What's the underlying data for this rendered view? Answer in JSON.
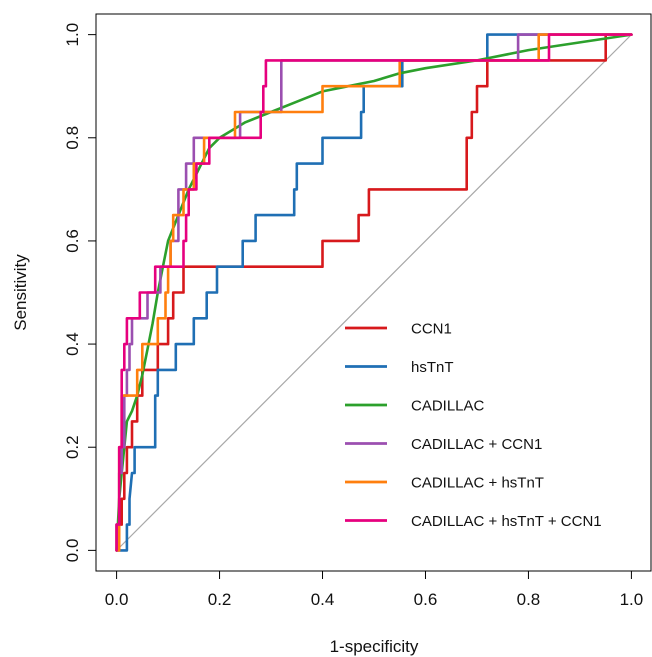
{
  "chart_data": {
    "type": "line",
    "title": "",
    "xlabel": "1-specificity",
    "ylabel": "Sensitivity",
    "xlim": [
      -0.04,
      1.04
    ],
    "ylim": [
      -0.04,
      1.04
    ],
    "x_ticks": [
      0.0,
      0.2,
      0.4,
      0.6,
      0.8,
      1.0
    ],
    "y_ticks": [
      0.0,
      0.2,
      0.4,
      0.6,
      0.8,
      1.0
    ],
    "x_tick_labels": [
      "0.0",
      "0.2",
      "0.4",
      "0.6",
      "0.8",
      "1.0"
    ],
    "y_tick_labels": [
      "0.0",
      "0.2",
      "0.4",
      "0.6",
      "0.8",
      "1.0"
    ],
    "grid": false,
    "legend_position": "bottom-right",
    "diagonal_reference_line": true,
    "series": [
      {
        "name": "CCN1",
        "color": "#d7191c",
        "points": [
          [
            0.0,
            0.0
          ],
          [
            0.0,
            0.05
          ],
          [
            0.01,
            0.05
          ],
          [
            0.01,
            0.1
          ],
          [
            0.015,
            0.1
          ],
          [
            0.015,
            0.15
          ],
          [
            0.02,
            0.15
          ],
          [
            0.02,
            0.2
          ],
          [
            0.03,
            0.2
          ],
          [
            0.03,
            0.25
          ],
          [
            0.04,
            0.25
          ],
          [
            0.04,
            0.3
          ],
          [
            0.05,
            0.3
          ],
          [
            0.05,
            0.35
          ],
          [
            0.08,
            0.35
          ],
          [
            0.08,
            0.4
          ],
          [
            0.1,
            0.4
          ],
          [
            0.1,
            0.45
          ],
          [
            0.11,
            0.45
          ],
          [
            0.11,
            0.5
          ],
          [
            0.13,
            0.5
          ],
          [
            0.13,
            0.55
          ],
          [
            0.4,
            0.55
          ],
          [
            0.4,
            0.6
          ],
          [
            0.47,
            0.6
          ],
          [
            0.47,
            0.65
          ],
          [
            0.49,
            0.65
          ],
          [
            0.49,
            0.7
          ],
          [
            0.68,
            0.7
          ],
          [
            0.68,
            0.8
          ],
          [
            0.69,
            0.8
          ],
          [
            0.69,
            0.85
          ],
          [
            0.7,
            0.85
          ],
          [
            0.7,
            0.9
          ],
          [
            0.72,
            0.9
          ],
          [
            0.72,
            0.95
          ],
          [
            0.95,
            0.95
          ],
          [
            0.95,
            1.0
          ],
          [
            1.0,
            1.0
          ]
        ]
      },
      {
        "name": "hsTnT",
        "color": "#1f6fb4",
        "points": [
          [
            0.0,
            0.0
          ],
          [
            0.02,
            0.0
          ],
          [
            0.02,
            0.05
          ],
          [
            0.025,
            0.05
          ],
          [
            0.025,
            0.1
          ],
          [
            0.03,
            0.15
          ],
          [
            0.035,
            0.15
          ],
          [
            0.035,
            0.2
          ],
          [
            0.075,
            0.2
          ],
          [
            0.075,
            0.25
          ],
          [
            0.075,
            0.3
          ],
          [
            0.08,
            0.3
          ],
          [
            0.08,
            0.35
          ],
          [
            0.115,
            0.35
          ],
          [
            0.115,
            0.4
          ],
          [
            0.15,
            0.4
          ],
          [
            0.15,
            0.45
          ],
          [
            0.175,
            0.45
          ],
          [
            0.175,
            0.5
          ],
          [
            0.195,
            0.5
          ],
          [
            0.195,
            0.55
          ],
          [
            0.245,
            0.55
          ],
          [
            0.245,
            0.6
          ],
          [
            0.27,
            0.6
          ],
          [
            0.27,
            0.65
          ],
          [
            0.345,
            0.65
          ],
          [
            0.345,
            0.7
          ],
          [
            0.35,
            0.7
          ],
          [
            0.35,
            0.75
          ],
          [
            0.4,
            0.75
          ],
          [
            0.4,
            0.8
          ],
          [
            0.475,
            0.8
          ],
          [
            0.475,
            0.85
          ],
          [
            0.48,
            0.85
          ],
          [
            0.48,
            0.9
          ],
          [
            0.555,
            0.9
          ],
          [
            0.555,
            0.95
          ],
          [
            0.72,
            0.95
          ],
          [
            0.72,
            1.0
          ],
          [
            1.0,
            1.0
          ]
        ]
      },
      {
        "name": "CADILLAC",
        "color": "#2ca02c",
        "points": [
          [
            0.0,
            0.0
          ],
          [
            0.005,
            0.1
          ],
          [
            0.01,
            0.15
          ],
          [
            0.015,
            0.2
          ],
          [
            0.02,
            0.25
          ],
          [
            0.03,
            0.27
          ],
          [
            0.04,
            0.3
          ],
          [
            0.05,
            0.34
          ],
          [
            0.06,
            0.39
          ],
          [
            0.07,
            0.44
          ],
          [
            0.08,
            0.5
          ],
          [
            0.09,
            0.55
          ],
          [
            0.1,
            0.6
          ],
          [
            0.12,
            0.65
          ],
          [
            0.14,
            0.7
          ],
          [
            0.16,
            0.74
          ],
          [
            0.18,
            0.78
          ],
          [
            0.2,
            0.8
          ],
          [
            0.25,
            0.83
          ],
          [
            0.3,
            0.85
          ],
          [
            0.35,
            0.87
          ],
          [
            0.4,
            0.89
          ],
          [
            0.45,
            0.9
          ],
          [
            0.5,
            0.91
          ],
          [
            0.55,
            0.925
          ],
          [
            0.6,
            0.935
          ],
          [
            0.7,
            0.95
          ],
          [
            0.8,
            0.97
          ],
          [
            0.9,
            0.985
          ],
          [
            1.0,
            1.0
          ]
        ]
      },
      {
        "name": "CADILLAC + CCN1",
        "color": "#9b4fb0",
        "points": [
          [
            0.0,
            0.0
          ],
          [
            0.0,
            0.05
          ],
          [
            0.005,
            0.05
          ],
          [
            0.005,
            0.15
          ],
          [
            0.01,
            0.15
          ],
          [
            0.01,
            0.2
          ],
          [
            0.015,
            0.2
          ],
          [
            0.015,
            0.3
          ],
          [
            0.02,
            0.3
          ],
          [
            0.02,
            0.35
          ],
          [
            0.025,
            0.35
          ],
          [
            0.025,
            0.4
          ],
          [
            0.03,
            0.4
          ],
          [
            0.03,
            0.45
          ],
          [
            0.06,
            0.45
          ],
          [
            0.06,
            0.5
          ],
          [
            0.085,
            0.5
          ],
          [
            0.085,
            0.55
          ],
          [
            0.105,
            0.55
          ],
          [
            0.105,
            0.6
          ],
          [
            0.12,
            0.6
          ],
          [
            0.12,
            0.7
          ],
          [
            0.135,
            0.7
          ],
          [
            0.135,
            0.75
          ],
          [
            0.15,
            0.75
          ],
          [
            0.15,
            0.8
          ],
          [
            0.24,
            0.8
          ],
          [
            0.24,
            0.85
          ],
          [
            0.32,
            0.85
          ],
          [
            0.32,
            0.95
          ],
          [
            0.78,
            0.95
          ],
          [
            0.78,
            1.0
          ],
          [
            1.0,
            1.0
          ]
        ]
      },
      {
        "name": "CADILLAC + hsTnT",
        "color": "#ff7f0e",
        "points": [
          [
            0.0,
            0.0
          ],
          [
            0.005,
            0.0
          ],
          [
            0.005,
            0.2
          ],
          [
            0.01,
            0.2
          ],
          [
            0.01,
            0.3
          ],
          [
            0.04,
            0.3
          ],
          [
            0.04,
            0.35
          ],
          [
            0.05,
            0.35
          ],
          [
            0.05,
            0.4
          ],
          [
            0.08,
            0.4
          ],
          [
            0.08,
            0.45
          ],
          [
            0.095,
            0.45
          ],
          [
            0.095,
            0.5
          ],
          [
            0.1,
            0.5
          ],
          [
            0.1,
            0.55
          ],
          [
            0.105,
            0.55
          ],
          [
            0.105,
            0.6
          ],
          [
            0.11,
            0.6
          ],
          [
            0.11,
            0.65
          ],
          [
            0.13,
            0.65
          ],
          [
            0.13,
            0.7
          ],
          [
            0.15,
            0.7
          ],
          [
            0.15,
            0.75
          ],
          [
            0.17,
            0.75
          ],
          [
            0.17,
            0.8
          ],
          [
            0.23,
            0.8
          ],
          [
            0.23,
            0.85
          ],
          [
            0.4,
            0.85
          ],
          [
            0.4,
            0.9
          ],
          [
            0.55,
            0.9
          ],
          [
            0.55,
            0.95
          ],
          [
            0.82,
            0.95
          ],
          [
            0.82,
            1.0
          ],
          [
            1.0,
            1.0
          ]
        ]
      },
      {
        "name": "CADILLAC + hsTnT + CCN1",
        "color": "#e6007e",
        "points": [
          [
            0.0,
            0.0
          ],
          [
            0.0,
            0.05
          ],
          [
            0.005,
            0.05
          ],
          [
            0.005,
            0.2
          ],
          [
            0.01,
            0.2
          ],
          [
            0.01,
            0.35
          ],
          [
            0.015,
            0.35
          ],
          [
            0.015,
            0.4
          ],
          [
            0.02,
            0.4
          ],
          [
            0.02,
            0.45
          ],
          [
            0.045,
            0.45
          ],
          [
            0.045,
            0.5
          ],
          [
            0.075,
            0.5
          ],
          [
            0.075,
            0.55
          ],
          [
            0.13,
            0.55
          ],
          [
            0.13,
            0.6
          ],
          [
            0.135,
            0.6
          ],
          [
            0.135,
            0.65
          ],
          [
            0.14,
            0.65
          ],
          [
            0.14,
            0.7
          ],
          [
            0.155,
            0.7
          ],
          [
            0.155,
            0.75
          ],
          [
            0.18,
            0.75
          ],
          [
            0.18,
            0.8
          ],
          [
            0.28,
            0.8
          ],
          [
            0.28,
            0.85
          ],
          [
            0.285,
            0.85
          ],
          [
            0.285,
            0.9
          ],
          [
            0.29,
            0.9
          ],
          [
            0.29,
            0.95
          ],
          [
            0.84,
            0.95
          ],
          [
            0.84,
            1.0
          ],
          [
            1.0,
            1.0
          ]
        ]
      }
    ]
  }
}
